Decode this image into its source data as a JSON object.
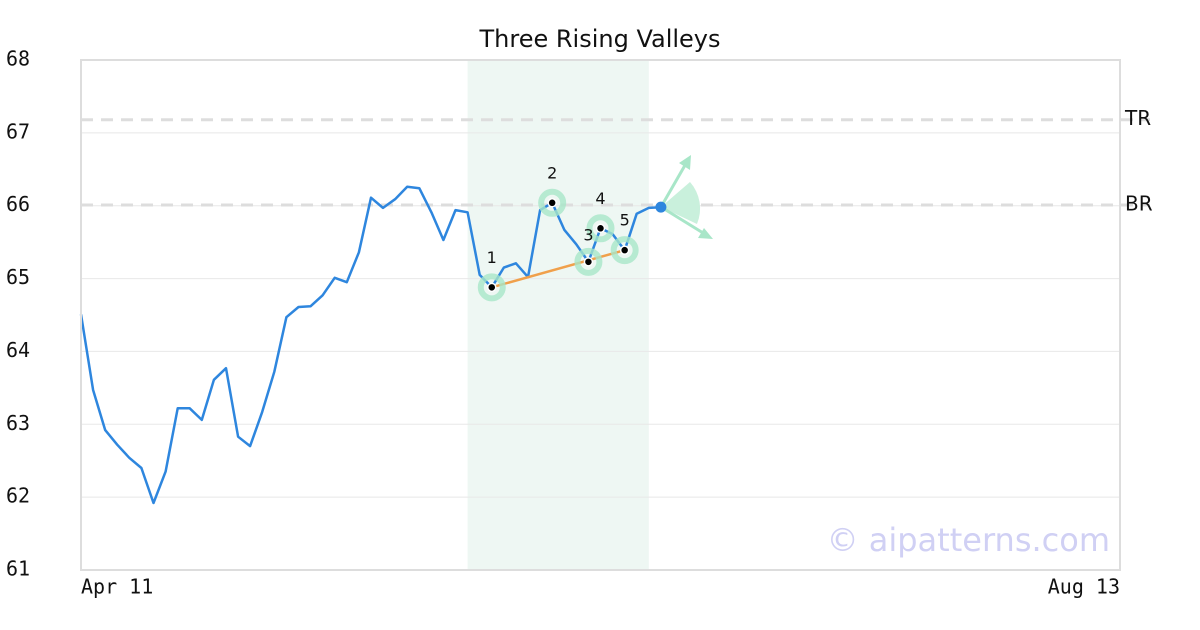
{
  "chart_data": {
    "type": "line",
    "title": "Three Rising Valleys",
    "categories": [
      "Apr 11",
      null,
      null,
      null,
      null,
      null,
      null,
      null,
      null,
      null,
      null,
      null,
      null,
      null,
      null,
      null,
      null,
      null,
      null,
      null,
      null,
      null,
      null,
      null,
      null,
      null,
      null,
      null,
      null,
      null,
      null,
      null,
      null,
      null,
      null,
      null,
      null,
      null,
      null,
      null,
      null,
      null,
      null,
      null,
      null,
      null,
      null,
      null,
      null,
      null,
      null,
      null,
      null,
      null,
      null,
      null,
      null,
      null,
      null,
      null,
      null,
      null,
      null,
      null,
      null,
      null,
      null,
      null,
      null,
      null,
      null,
      null,
      null,
      null,
      null,
      null,
      null,
      null,
      null,
      null,
      null,
      null,
      null,
      null,
      null,
      null,
      "Aug 13"
    ],
    "values": [
      64.51,
      63.47,
      62.92,
      62.72,
      62.54,
      62.4,
      61.92,
      62.35,
      63.22,
      63.22,
      63.06,
      63.61,
      63.77,
      62.83,
      62.7,
      63.17,
      63.72,
      64.47,
      64.61,
      64.62,
      64.77,
      65.01,
      64.95,
      65.36,
      66.11,
      65.97,
      66.09,
      66.26,
      66.24,
      65.91,
      65.53,
      65.94,
      65.91,
      65.05,
      64.88,
      65.15,
      65.21,
      65.02,
      65.94,
      66.04,
      65.67,
      65.47,
      65.23,
      65.69,
      65.61,
      65.39,
      65.89,
      65.97,
      65.98,
      null,
      null,
      null,
      null,
      null,
      null,
      null,
      null,
      null,
      null,
      null,
      null,
      null,
      null,
      null,
      null,
      null,
      null,
      null,
      null,
      null,
      null,
      null,
      null,
      null,
      null,
      null,
      null,
      null,
      null,
      null,
      null,
      null,
      null,
      null,
      null,
      null,
      null
    ],
    "color": "#2e86de",
    "ylim": [
      61,
      68
    ],
    "yticks": [
      61,
      62,
      63,
      64,
      65,
      66,
      67,
      68
    ],
    "grid": true,
    "levels": [
      {
        "label": "TR",
        "value": 67.18
      },
      {
        "label": "BR",
        "value": 66.01
      }
    ],
    "highlight": [
      32,
      47
    ],
    "pattern_points": [
      {
        "label": "1",
        "index": 34,
        "value": 64.88
      },
      {
        "label": "2",
        "index": 39,
        "value": 66.04
      },
      {
        "label": "3",
        "index": 42,
        "value": 65.23
      },
      {
        "label": "4",
        "index": 43,
        "value": 65.69
      },
      {
        "label": "5",
        "index": 45,
        "value": 65.39
      }
    ],
    "watermark": "© aipatterns.com"
  }
}
